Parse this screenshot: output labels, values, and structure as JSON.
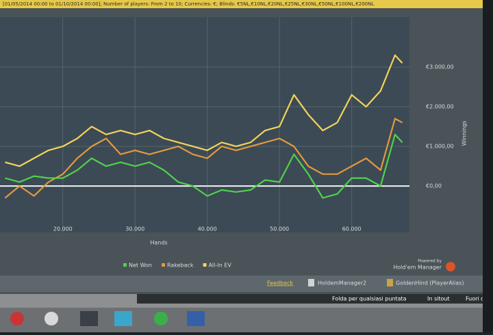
{
  "header": {
    "filter": "[01/05/2014 00:00 to 01/10/2014 00:00]; Number of players: From 2 to 10; Currencies: €; Blinds: €5NL,€10NL,€20NL,€25NL,€30NL,€50NL,€100NL,€200NL"
  },
  "chart_data": {
    "type": "line",
    "x": [
      12000,
      14000,
      16000,
      18000,
      20000,
      22000,
      24000,
      26000,
      28000,
      30000,
      32000,
      34000,
      36000,
      38000,
      40000,
      42000,
      44000,
      46000,
      48000,
      50000,
      52000,
      54000,
      56000,
      58000,
      60000,
      62000,
      64000,
      66000,
      67000
    ],
    "series": [
      {
        "name": "Net Won",
        "color": "#4fd24a",
        "values": [
          200,
          100,
          250,
          200,
          200,
          400,
          700,
          500,
          600,
          500,
          600,
          400,
          100,
          0,
          -250,
          -100,
          -150,
          -100,
          150,
          100,
          800,
          300,
          -300,
          -200,
          200,
          200,
          0,
          1300,
          1100
        ]
      },
      {
        "name": "Rakeback",
        "color": "#e39a3c",
        "values": [
          -300,
          0,
          -250,
          100,
          300,
          700,
          1000,
          1200,
          800,
          900,
          800,
          900,
          1000,
          800,
          700,
          1000,
          900,
          1000,
          1100,
          1200,
          1000,
          500,
          300,
          300,
          500,
          700,
          400,
          1700,
          1600
        ]
      },
      {
        "name": "All-In EV",
        "color": "#f2d45a",
        "values": [
          600,
          500,
          700,
          900,
          1000,
          1200,
          1500,
          1300,
          1400,
          1300,
          1400,
          1200,
          1100,
          1000,
          900,
          1100,
          1000,
          1100,
          1400,
          1500,
          2300,
          1800,
          1400,
          1600,
          2300,
          2000,
          2400,
          3300,
          3100
        ]
      }
    ],
    "xlim": [
      11300,
      68000
    ],
    "ylim": [
      -1170,
      4260
    ],
    "xticks": [
      {
        "value": 20000,
        "label": "20.000"
      },
      {
        "value": 30000,
        "label": "30.000"
      },
      {
        "value": 40000,
        "label": "40.000"
      },
      {
        "value": 50000,
        "label": "50.000"
      },
      {
        "value": 60000,
        "label": "60.000"
      }
    ],
    "yticks": [
      {
        "value": 0,
        "label": "€0,00"
      },
      {
        "value": 1000,
        "label": "€1.000,00"
      },
      {
        "value": 2000,
        "label": "€2.000,00"
      },
      {
        "value": 3000,
        "label": "€3.000,00"
      }
    ],
    "xlabel": "Hands",
    "ylabel": "Winnings",
    "grid": true
  },
  "footer": {
    "powered": "Powered by",
    "brand": "Hold'em Manager",
    "links": [
      "Feedback",
      "HoldemManager2",
      "GoldenHind (PlayerAlias)"
    ]
  },
  "taskbar": {
    "items": [
      "Folda per qualsiasi puntata",
      "In sitout",
      "Fuori d"
    ]
  }
}
